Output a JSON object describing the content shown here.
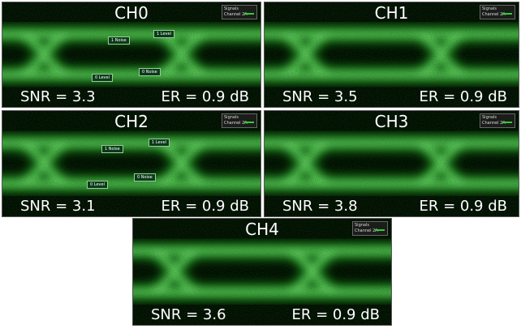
{
  "panels": [
    {
      "title": "CH0",
      "snr": "SNR = 3.3",
      "er": "ER = 0.9 dB",
      "legend": [
        "Signals",
        "Channel 2A"
      ],
      "markers": [
        "1 Level",
        "1 Noise",
        "0 Level",
        "0 Noise"
      ]
    },
    {
      "title": "CH1",
      "snr": "SNR = 3.5",
      "er": "ER = 0.9 dB",
      "legend": [
        "Signals",
        "Channel 2A"
      ]
    },
    {
      "title": "CH2",
      "snr": "SNR = 3.1",
      "er": "ER = 0.9 dB",
      "legend": [
        "Signals",
        "Channel 2A"
      ],
      "markers": [
        "1 Noise",
        "1 Level",
        "0 Level",
        "0 Noise"
      ]
    },
    {
      "title": "CH3",
      "snr": "SNR = 3.8",
      "er": "ER = 0.9 dB",
      "legend": [
        "Signals",
        "Channel 2A"
      ]
    },
    {
      "title": "CH4",
      "snr": "SNR = 3.6",
      "er": "ER = 0.9 dB",
      "legend": [
        "Signals",
        "Channel 2A"
      ]
    }
  ]
}
